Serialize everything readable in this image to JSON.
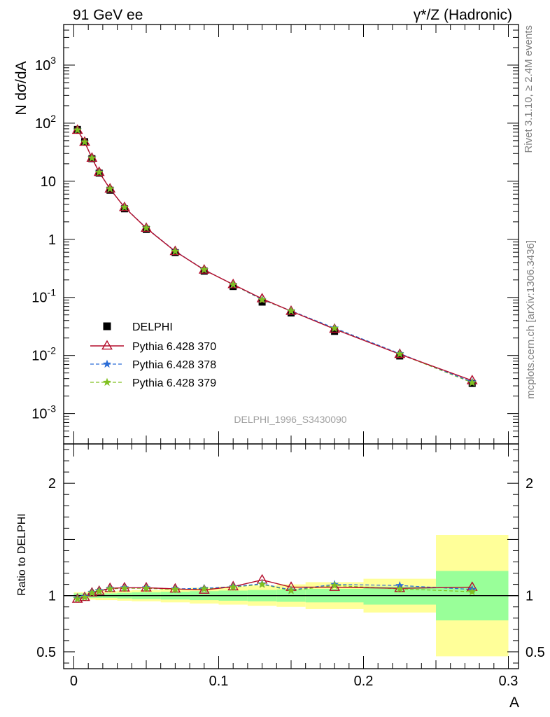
{
  "header": {
    "left_label": "91 GeV ee",
    "right_label": "γ*/Z (Hadronic)"
  },
  "side_labels": {
    "rivet": "Rivet 3.1.10, ≥ 2.4M events",
    "mcplots": "mcplots.cern.ch [arXiv:1306.3436]"
  },
  "analysis_label": "DELPHI_1996_S3430090",
  "colors": {
    "data": "#000000",
    "p370": "#b40c2a",
    "p378": "#2a6cd6",
    "p379": "#80c020",
    "band_inner": "#99ff99",
    "band_outer": "#ffff99"
  },
  "chart_data": [
    {
      "type": "scatter",
      "ylabel": "N dσ/dA",
      "yscale": "log",
      "ylim": [
        0.0003,
        5000
      ],
      "xlim": [
        -0.007,
        0.307
      ],
      "y_tick_labels": [
        "10^-3",
        "10^-2",
        "10^-1",
        "1",
        "10",
        "10^2",
        "10^3"
      ],
      "x": [
        0.0025,
        0.0075,
        0.0125,
        0.0175,
        0.025,
        0.035,
        0.05,
        0.07,
        0.09,
        0.11,
        0.13,
        0.15,
        0.18,
        0.225,
        0.275
      ],
      "series": [
        {
          "name": "DELPHI",
          "style": "data",
          "values": [
            78,
            48,
            24.5,
            13.8,
            7.0,
            3.35,
            1.48,
            0.59,
            0.283,
            0.154,
            0.083,
            0.054,
            0.026,
            0.0098,
            0.0033
          ]
        },
        {
          "name": "Pythia 6.428 370",
          "style": "line-open-triangle",
          "values": [
            76,
            47.3,
            25.1,
            14.3,
            7.4,
            3.55,
            1.56,
            0.62,
            0.297,
            0.167,
            0.095,
            0.058,
            0.0285,
            0.0105,
            0.0037
          ]
        },
        {
          "name": "Pythia 6.428 378",
          "style": "dashed-star",
          "values": [
            76.5,
            47.5,
            25.2,
            14.4,
            7.45,
            3.58,
            1.58,
            0.625,
            0.301,
            0.167,
            0.092,
            0.059,
            0.0297,
            0.0108,
            0.0035
          ]
        },
        {
          "name": "Pythia 6.428 379",
          "style": "dashed-star",
          "values": [
            76.2,
            47.4,
            25.1,
            14.3,
            7.42,
            3.57,
            1.57,
            0.622,
            0.3,
            0.166,
            0.091,
            0.0585,
            0.0294,
            0.0106,
            0.0034
          ]
        }
      ]
    },
    {
      "type": "line",
      "ylabel": "Ratio to DELPHI",
      "xlabel": "A",
      "ylim": [
        0.35,
        2.35
      ],
      "xlim": [
        -0.007,
        0.307
      ],
      "y_ticks": [
        0.5,
        1,
        2
      ],
      "x_ticks": [
        0,
        0.1,
        0.2,
        0.3
      ],
      "x": [
        0.0025,
        0.0075,
        0.0125,
        0.0175,
        0.025,
        0.035,
        0.05,
        0.07,
        0.09,
        0.11,
        0.13,
        0.15,
        0.18,
        0.225,
        0.275
      ],
      "bands": {
        "edges": [
          0,
          0.005,
          0.01,
          0.015,
          0.02,
          0.03,
          0.04,
          0.06,
          0.08,
          0.1,
          0.12,
          0.14,
          0.16,
          0.2,
          0.25,
          0.3
        ],
        "inner": [
          0.02,
          0.02,
          0.02,
          0.02,
          0.02,
          0.025,
          0.03,
          0.035,
          0.04,
          0.045,
          0.05,
          0.055,
          0.06,
          0.08,
          0.22
        ],
        "outer": [
          0.03,
          0.03,
          0.035,
          0.04,
          0.04,
          0.045,
          0.05,
          0.06,
          0.07,
          0.08,
          0.09,
          0.1,
          0.12,
          0.15,
          0.54
        ]
      },
      "series": [
        {
          "name": "Pythia 6.428 370",
          "style": "line-open-triangle",
          "values": [
            0.97,
            0.985,
            1.025,
            1.04,
            1.065,
            1.07,
            1.07,
            1.06,
            1.05,
            1.08,
            1.14,
            1.075,
            1.075,
            1.065,
            1.075
          ]
        },
        {
          "name": "Pythia 6.428 378",
          "style": "dashed-star",
          "values": [
            0.975,
            0.99,
            1.03,
            1.045,
            1.065,
            1.07,
            1.07,
            1.06,
            1.065,
            1.08,
            1.105,
            1.05,
            1.1,
            1.09,
            1.055
          ]
        },
        {
          "name": "Pythia 6.428 379",
          "style": "dashed-star",
          "values": [
            0.97,
            0.985,
            1.025,
            1.04,
            1.06,
            1.065,
            1.065,
            1.055,
            1.06,
            1.075,
            1.1,
            1.045,
            1.09,
            1.06,
            1.035
          ]
        }
      ]
    }
  ]
}
